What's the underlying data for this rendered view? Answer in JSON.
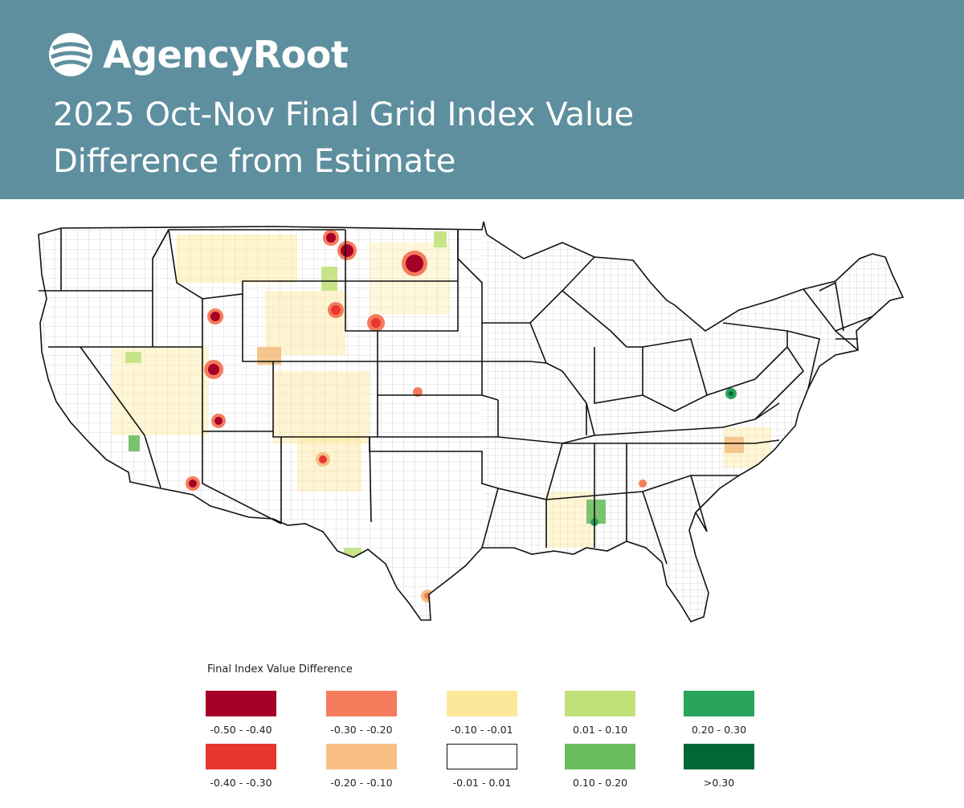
{
  "brand": {
    "name": "AgencyRoot",
    "logo_icon": "agencyroot-logo-icon"
  },
  "header": {
    "background": "#5e8f9e",
    "title_line1": "2025 Oct-Nov Final Grid Index Value",
    "title_line2": "Difference from Estimate"
  },
  "map": {
    "region": "contiguous-united-states",
    "boundaries": "state and county lines",
    "hotspots": [
      {
        "area": "northern Montana",
        "class": "-0.50 - -0.40"
      },
      {
        "area": "central North Dakota",
        "class": "-0.50 - -0.40"
      },
      {
        "area": "southwestern Idaho",
        "class": "-0.40 - -0.30"
      },
      {
        "area": "northern Utah",
        "class": "-0.50 - -0.40"
      },
      {
        "area": "southwestern Utah",
        "class": "-0.40 - -0.30"
      },
      {
        "area": "western Arizona border",
        "class": "-0.50 - -0.40"
      },
      {
        "area": "northeastern Wyoming",
        "class": "-0.40 - -0.30"
      },
      {
        "area": "western South Dakota",
        "class": "-0.40 - -0.30"
      },
      {
        "area": "central New Mexico",
        "class": "-0.40 - -0.30"
      },
      {
        "area": "southern Texas",
        "class": "-0.30 - -0.20"
      },
      {
        "area": "western Virginia",
        "class": "0.20 - 0.30"
      },
      {
        "area": "southern Alabama",
        "class": "0.20 - 0.30"
      }
    ]
  },
  "legend": {
    "title": "Final Index Value Difference",
    "items": [
      {
        "label": "-0.50 - -0.40",
        "color": "#a50026"
      },
      {
        "label": "-0.30 - -0.20",
        "color": "#f47b5c"
      },
      {
        "label": "-0.10 - -0.01",
        "color": "#fde89a"
      },
      {
        "label": "0.01 - 0.10",
        "color": "#c1e17b"
      },
      {
        "label": "0.20 - 0.30",
        "color": "#2aa35c"
      },
      {
        "label": "-0.40 - -0.30",
        "color": "#e8352e"
      },
      {
        "label": "-0.20 - -0.10",
        "color": "#f7bf82"
      },
      {
        "label": "-0.01 - 0.01",
        "color": "#ffffff"
      },
      {
        "label": "0.10 - 0.20",
        "color": "#6cbd5f"
      },
      {
        "label": ">0.30",
        "color": "#006837"
      }
    ]
  }
}
